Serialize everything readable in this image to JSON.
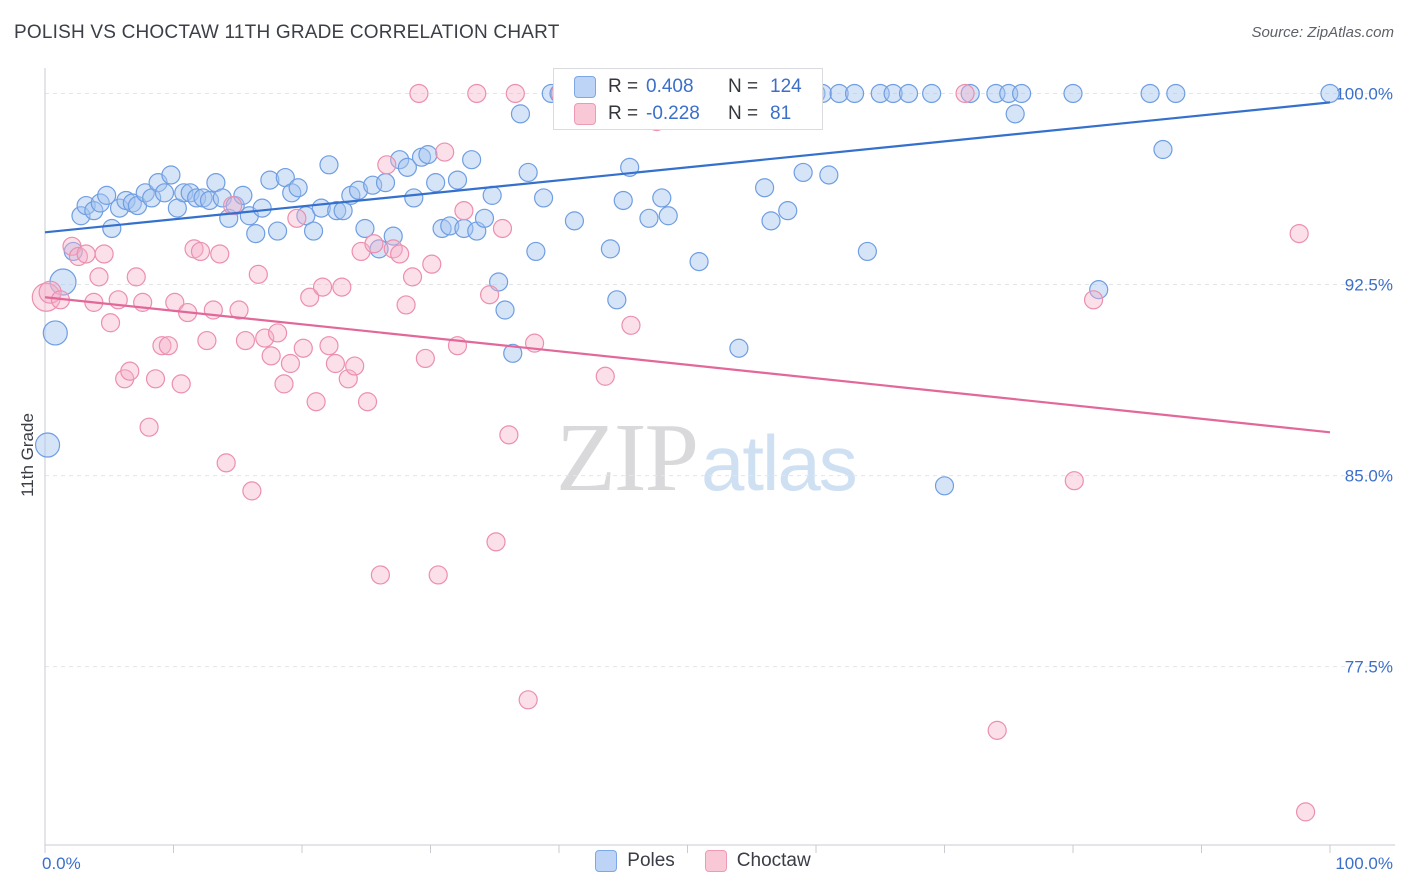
{
  "title": "POLISH VS CHOCTAW 11TH GRADE CORRELATION CHART",
  "source": "Source: ZipAtlas.com",
  "watermark": {
    "zip": "ZIP",
    "atlas": "atlas"
  },
  "stats": {
    "rows": [
      {
        "r_label": "R =",
        "r_value": "0.408",
        "n_label": "N =",
        "n_value": "124"
      },
      {
        "r_label": "R =",
        "r_value": "-0.228",
        "n_label": "N =",
        "n_value": "81"
      }
    ]
  },
  "legend": [
    "Poles",
    "Choctaw"
  ],
  "colors": {
    "poles": "#5b8fdd",
    "choctaw": "#ea7ba0",
    "poles_line": "#3470cc",
    "choctaw_line": "#e2689a",
    "tick_label": "#3b6fc9"
  },
  "chart_data": {
    "type": "scatter",
    "title": "POLISH VS CHOCTAW 11TH GRADE CORRELATION CHART",
    "xlabel": "",
    "ylabel": "11th Grade",
    "xlim": [
      0,
      100
    ],
    "ylim": [
      70.5,
      101
    ],
    "x_tick_labels": [
      "0.0%",
      "100.0%"
    ],
    "y_ticks": [
      100,
      92.5,
      85,
      77.5
    ],
    "y_tick_labels": [
      "100.0%",
      "92.5%",
      "85.0%",
      "77.5%"
    ],
    "grid": true,
    "legend_position": "bottom",
    "series": [
      {
        "name": "Poles",
        "trend": {
          "x": [
            0,
            100
          ],
          "y": [
            94.55,
            99.65
          ]
        },
        "points": [
          [
            0.2,
            86.2
          ],
          [
            0.8,
            90.6
          ],
          [
            1.4,
            92.6
          ],
          [
            2.2,
            93.8
          ],
          [
            2.8,
            95.2
          ],
          [
            3.2,
            95.6
          ],
          [
            3.8,
            95.4
          ],
          [
            4.3,
            95.7
          ],
          [
            4.8,
            96
          ],
          [
            5.2,
            94.7
          ],
          [
            5.8,
            95.5
          ],
          [
            6.3,
            95.8
          ],
          [
            6.8,
            95.7
          ],
          [
            7.2,
            95.6
          ],
          [
            7.8,
            96.1
          ],
          [
            8.3,
            95.9
          ],
          [
            8.8,
            96.5
          ],
          [
            9.3,
            96.1
          ],
          [
            9.8,
            96.8
          ],
          [
            10.3,
            95.5
          ],
          [
            10.8,
            96.1
          ],
          [
            11.3,
            96.1
          ],
          [
            11.8,
            95.9
          ],
          [
            12.3,
            95.9
          ],
          [
            12.8,
            95.8
          ],
          [
            13.3,
            96.5
          ],
          [
            13.8,
            95.9
          ],
          [
            14.3,
            95.1
          ],
          [
            14.8,
            95.6
          ],
          [
            15.4,
            96
          ],
          [
            15.9,
            95.2
          ],
          [
            16.4,
            94.5
          ],
          [
            16.9,
            95.5
          ],
          [
            17.5,
            96.6
          ],
          [
            18.1,
            94.6
          ],
          [
            18.7,
            96.7
          ],
          [
            19.2,
            96.1
          ],
          [
            19.7,
            96.3
          ],
          [
            20.3,
            95.2
          ],
          [
            20.9,
            94.6
          ],
          [
            21.5,
            95.5
          ],
          [
            22.1,
            97.2
          ],
          [
            22.7,
            95.4
          ],
          [
            23.2,
            95.4
          ],
          [
            23.8,
            96
          ],
          [
            24.4,
            96.2
          ],
          [
            24.9,
            94.7
          ],
          [
            25.5,
            96.4
          ],
          [
            26,
            93.9
          ],
          [
            26.5,
            96.5
          ],
          [
            27.1,
            94.4
          ],
          [
            27.6,
            97.4
          ],
          [
            28.2,
            97.1
          ],
          [
            28.7,
            95.9
          ],
          [
            29.3,
            97.5
          ],
          [
            29.8,
            97.6
          ],
          [
            30.4,
            96.5
          ],
          [
            30.9,
            94.7
          ],
          [
            31.5,
            94.8
          ],
          [
            32.1,
            96.6
          ],
          [
            32.6,
            94.7
          ],
          [
            33.2,
            97.4
          ],
          [
            33.6,
            94.6
          ],
          [
            34.2,
            95.1
          ],
          [
            34.8,
            96
          ],
          [
            35.3,
            92.6
          ],
          [
            35.8,
            91.5
          ],
          [
            36.4,
            89.8
          ],
          [
            37,
            99.2
          ],
          [
            37.6,
            96.9
          ],
          [
            38.2,
            93.8
          ],
          [
            38.8,
            95.9
          ],
          [
            39.4,
            100
          ],
          [
            40,
            100
          ],
          [
            41.2,
            95
          ],
          [
            42.5,
            99.2
          ],
          [
            43.5,
            100
          ],
          [
            44,
            93.9
          ],
          [
            44.5,
            91.9
          ],
          [
            45,
            95.8
          ],
          [
            45.5,
            97.1
          ],
          [
            46.8,
            100
          ],
          [
            47,
            95.1
          ],
          [
            48,
            95.9
          ],
          [
            48.5,
            95.2
          ],
          [
            49.5,
            100
          ],
          [
            50.2,
            100
          ],
          [
            50.9,
            93.4
          ],
          [
            51.8,
            100
          ],
          [
            53,
            100
          ],
          [
            54,
            90
          ],
          [
            55,
            100
          ],
          [
            56,
            96.3
          ],
          [
            56.5,
            95
          ],
          [
            57,
            100
          ],
          [
            57.8,
            95.4
          ],
          [
            58.5,
            100
          ],
          [
            59,
            96.9
          ],
          [
            60,
            100
          ],
          [
            60.5,
            100
          ],
          [
            61,
            96.8
          ],
          [
            61.8,
            100
          ],
          [
            63,
            100
          ],
          [
            64,
            93.8
          ],
          [
            65,
            100
          ],
          [
            66,
            100
          ],
          [
            67.2,
            100
          ],
          [
            69,
            100
          ],
          [
            70,
            84.6
          ],
          [
            72,
            100
          ],
          [
            74,
            100
          ],
          [
            75,
            100
          ],
          [
            75.5,
            99.2
          ],
          [
            76,
            100
          ],
          [
            80,
            100
          ],
          [
            82,
            92.3
          ],
          [
            86,
            100
          ],
          [
            87,
            97.8
          ],
          [
            88,
            100
          ],
          [
            100,
            100
          ]
        ]
      },
      {
        "name": "Choctaw",
        "trend": {
          "x": [
            0,
            100
          ],
          "y": [
            92.0,
            86.7
          ]
        },
        "points": [
          [
            0.1,
            92
          ],
          [
            0.4,
            92.2
          ],
          [
            1.2,
            91.9
          ],
          [
            2.1,
            94
          ],
          [
            2.6,
            93.6
          ],
          [
            3.2,
            93.7
          ],
          [
            3.8,
            91.8
          ],
          [
            4.2,
            92.8
          ],
          [
            4.6,
            93.7
          ],
          [
            5.1,
            91
          ],
          [
            5.7,
            91.9
          ],
          [
            6.2,
            88.8
          ],
          [
            6.6,
            89.1
          ],
          [
            7.1,
            92.8
          ],
          [
            7.6,
            91.8
          ],
          [
            8.1,
            86.9
          ],
          [
            8.6,
            88.8
          ],
          [
            9.1,
            90.1
          ],
          [
            9.6,
            90.1
          ],
          [
            10.1,
            91.8
          ],
          [
            10.6,
            88.6
          ],
          [
            11.1,
            91.4
          ],
          [
            11.6,
            93.9
          ],
          [
            12.1,
            93.8
          ],
          [
            12.6,
            90.3
          ],
          [
            13.1,
            91.5
          ],
          [
            13.6,
            93.7
          ],
          [
            14.1,
            85.5
          ],
          [
            14.6,
            95.6
          ],
          [
            15.1,
            91.5
          ],
          [
            15.6,
            90.3
          ],
          [
            16.1,
            84.4
          ],
          [
            16.6,
            92.9
          ],
          [
            17.1,
            90.4
          ],
          [
            17.6,
            89.7
          ],
          [
            18.1,
            90.6
          ],
          [
            18.6,
            88.6
          ],
          [
            19.1,
            89.4
          ],
          [
            19.6,
            95.1
          ],
          [
            20.1,
            90
          ],
          [
            20.6,
            92
          ],
          [
            21.1,
            87.9
          ],
          [
            21.6,
            92.4
          ],
          [
            22.1,
            90.1
          ],
          [
            22.6,
            89.4
          ],
          [
            23.1,
            92.4
          ],
          [
            23.6,
            88.8
          ],
          [
            24.1,
            89.3
          ],
          [
            24.6,
            93.8
          ],
          [
            25.1,
            87.9
          ],
          [
            25.6,
            94.1
          ],
          [
            26.1,
            81.1
          ],
          [
            26.6,
            97.2
          ],
          [
            27.1,
            93.9
          ],
          [
            27.6,
            93.7
          ],
          [
            28.1,
            91.7
          ],
          [
            28.6,
            92.8
          ],
          [
            29.1,
            100
          ],
          [
            29.6,
            89.6
          ],
          [
            30.1,
            93.3
          ],
          [
            30.6,
            81.1
          ],
          [
            31.1,
            97.7
          ],
          [
            32.1,
            90.1
          ],
          [
            32.6,
            95.4
          ],
          [
            33.6,
            100
          ],
          [
            34.6,
            92.1
          ],
          [
            35.1,
            82.4
          ],
          [
            35.6,
            94.7
          ],
          [
            36.1,
            86.6
          ],
          [
            36.6,
            100
          ],
          [
            37.6,
            76.2
          ],
          [
            38.1,
            90.2
          ],
          [
            40.1,
            100
          ],
          [
            43.6,
            88.9
          ],
          [
            45.6,
            90.9
          ],
          [
            47.6,
            98.9
          ],
          [
            71.6,
            100
          ],
          [
            74.1,
            75
          ],
          [
            80.1,
            84.8
          ],
          [
            81.6,
            91.9
          ],
          [
            97.6,
            94.5
          ],
          [
            98.1,
            71.8
          ]
        ]
      }
    ]
  }
}
